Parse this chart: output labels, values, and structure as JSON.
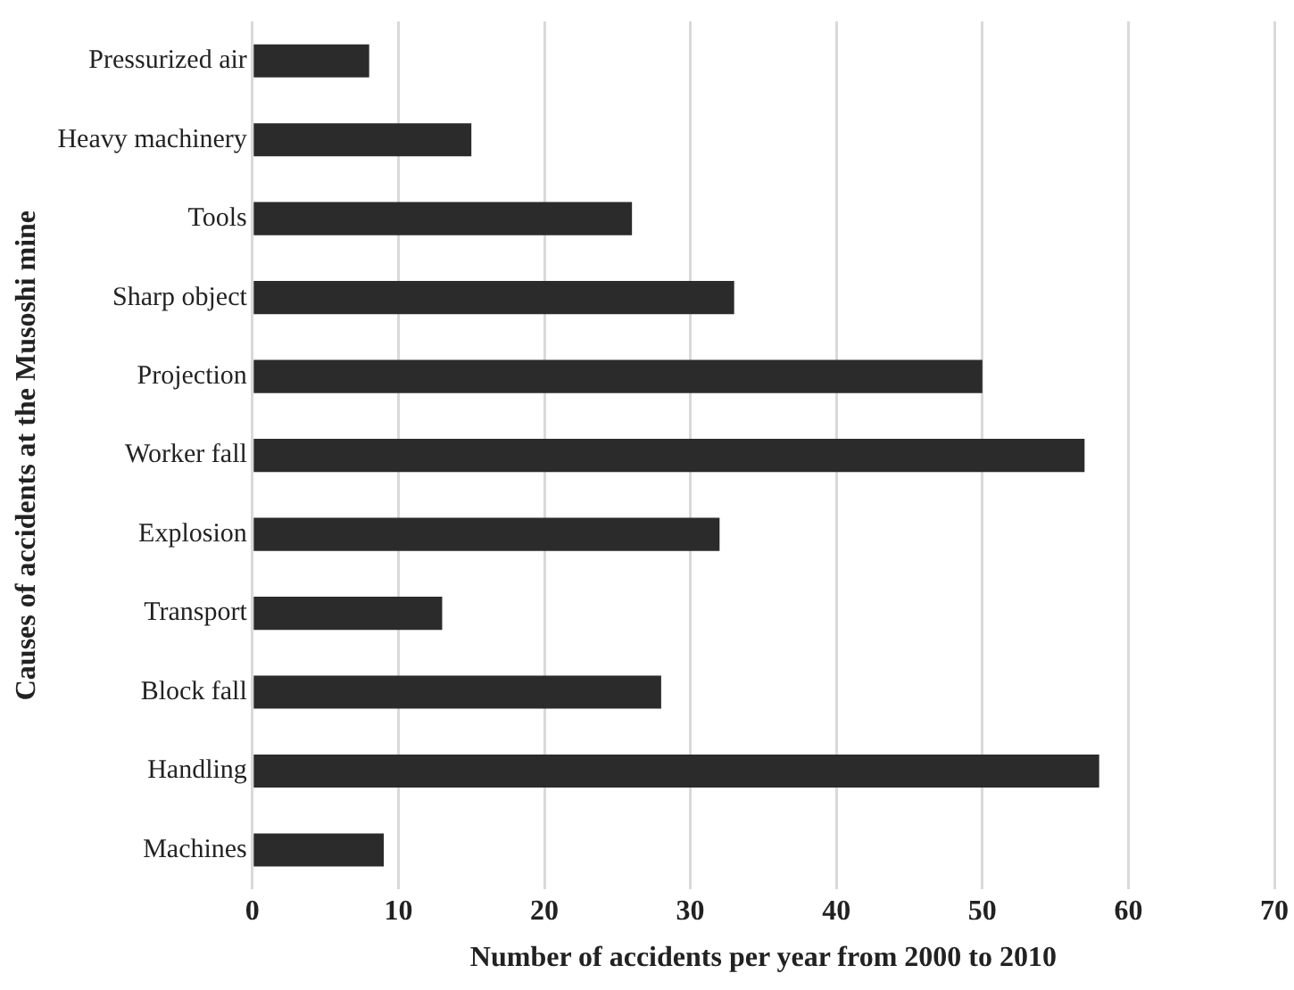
{
  "chart_data": {
    "type": "bar",
    "orientation": "horizontal",
    "xlabel": "Number of accidents per year from 2000 to 2010",
    "ylabel": "Causes of accidents at the Musoshi mine",
    "categories": [
      "Pressurized air",
      "Heavy machinery",
      "Tools",
      "Sharp object",
      "Projection",
      "Worker fall",
      "Explosion",
      "Transport",
      "Block fall",
      "Handling",
      "Machines"
    ],
    "values": [
      8,
      15,
      26,
      33,
      50,
      57,
      32,
      13,
      28,
      58,
      9
    ],
    "color": "#2b2b2b",
    "xlim": [
      0,
      70
    ],
    "xticks": [
      0,
      10,
      20,
      30,
      40,
      50,
      60,
      70
    ],
    "grid": "x",
    "legend": false
  }
}
